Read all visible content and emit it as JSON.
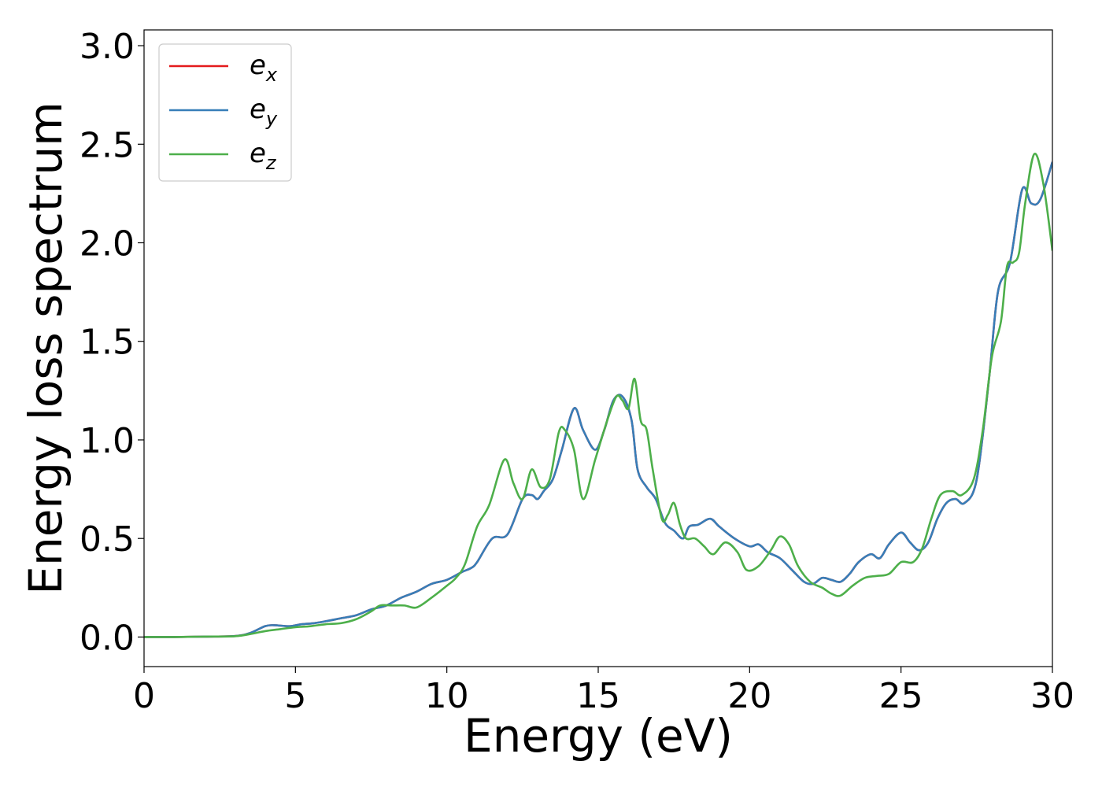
{
  "chart_data": {
    "type": "line",
    "xlabel": "Energy (eV)",
    "ylabel": "Energy loss spectrum",
    "xlim": [
      0,
      30
    ],
    "ylim": [
      -0.15,
      3.08
    ],
    "xticks": [
      "0",
      "5",
      "10",
      "15",
      "20",
      "25",
      "30"
    ],
    "yticks": [
      "0.0",
      "0.5",
      "1.0",
      "1.5",
      "2.0",
      "2.5",
      "3.0"
    ],
    "grid": false,
    "legend_position": "top-left",
    "series": [
      {
        "name": "e",
        "sub": "x",
        "color": "#e41a1c",
        "x": [
          0,
          1,
          2,
          3,
          3.5,
          4,
          4.3,
          4.8,
          5.2,
          5.6,
          6,
          6.5,
          7,
          7.5,
          8,
          8.5,
          9,
          9.5,
          10,
          10.5,
          10.8,
          11,
          11.5,
          12,
          12.5,
          12.8,
          13,
          13.2,
          13.5,
          13.8,
          14.2,
          14.5,
          14.9,
          15.2,
          15.5,
          15.8,
          16.1,
          16.3,
          16.6,
          16.9,
          17.2,
          17.5,
          17.8,
          18,
          18.3,
          18.7,
          19,
          19.5,
          20,
          20.3,
          20.6,
          21,
          21.4,
          21.8,
          22.1,
          22.4,
          22.7,
          23,
          23.3,
          23.6,
          24,
          24.3,
          24.6,
          25,
          25.3,
          25.6,
          25.9,
          26.2,
          26.5,
          26.8,
          27.1,
          27.5,
          27.9,
          28.2,
          28.6,
          29,
          29.3,
          29.6,
          30
        ],
        "y": [
          0,
          0,
          0.002,
          0.005,
          0.02,
          0.055,
          0.06,
          0.055,
          0.065,
          0.07,
          0.08,
          0.095,
          0.11,
          0.14,
          0.16,
          0.2,
          0.23,
          0.27,
          0.29,
          0.33,
          0.35,
          0.38,
          0.5,
          0.52,
          0.7,
          0.72,
          0.7,
          0.74,
          0.8,
          0.95,
          1.16,
          1.05,
          0.95,
          1.05,
          1.2,
          1.22,
          1.1,
          0.85,
          0.76,
          0.7,
          0.58,
          0.54,
          0.5,
          0.56,
          0.57,
          0.6,
          0.56,
          0.5,
          0.46,
          0.47,
          0.43,
          0.4,
          0.34,
          0.28,
          0.27,
          0.3,
          0.29,
          0.28,
          0.32,
          0.38,
          0.42,
          0.4,
          0.47,
          0.53,
          0.48,
          0.44,
          0.48,
          0.6,
          0.68,
          0.7,
          0.68,
          0.8,
          1.3,
          1.75,
          1.9,
          2.27,
          2.2,
          2.22,
          2.41
        ]
      },
      {
        "name": "e",
        "sub": "y",
        "color": "#377eb8",
        "x": [
          0,
          1,
          2,
          3,
          3.5,
          4,
          4.3,
          4.8,
          5.2,
          5.6,
          6,
          6.5,
          7,
          7.5,
          8,
          8.5,
          9,
          9.5,
          10,
          10.5,
          10.8,
          11,
          11.5,
          12,
          12.5,
          12.8,
          13,
          13.2,
          13.5,
          13.8,
          14.2,
          14.5,
          14.9,
          15.2,
          15.5,
          15.8,
          16.1,
          16.3,
          16.6,
          16.9,
          17.2,
          17.5,
          17.8,
          18,
          18.3,
          18.7,
          19,
          19.5,
          20,
          20.3,
          20.6,
          21,
          21.4,
          21.8,
          22.1,
          22.4,
          22.7,
          23,
          23.3,
          23.6,
          24,
          24.3,
          24.6,
          25,
          25.3,
          25.6,
          25.9,
          26.2,
          26.5,
          26.8,
          27.1,
          27.5,
          27.9,
          28.2,
          28.6,
          29,
          29.3,
          29.6,
          30
        ],
        "y": [
          0,
          0,
          0.002,
          0.005,
          0.02,
          0.055,
          0.06,
          0.055,
          0.065,
          0.07,
          0.08,
          0.095,
          0.11,
          0.14,
          0.16,
          0.2,
          0.23,
          0.27,
          0.29,
          0.33,
          0.35,
          0.38,
          0.5,
          0.52,
          0.7,
          0.72,
          0.7,
          0.74,
          0.8,
          0.95,
          1.16,
          1.05,
          0.95,
          1.05,
          1.2,
          1.22,
          1.1,
          0.85,
          0.76,
          0.7,
          0.58,
          0.54,
          0.5,
          0.56,
          0.57,
          0.6,
          0.56,
          0.5,
          0.46,
          0.47,
          0.43,
          0.4,
          0.34,
          0.28,
          0.27,
          0.3,
          0.29,
          0.28,
          0.32,
          0.38,
          0.42,
          0.4,
          0.47,
          0.53,
          0.48,
          0.44,
          0.48,
          0.6,
          0.68,
          0.7,
          0.68,
          0.8,
          1.3,
          1.75,
          1.9,
          2.27,
          2.2,
          2.22,
          2.41
        ]
      },
      {
        "name": "e",
        "sub": "z",
        "color": "#4daf4a",
        "x": [
          0,
          1,
          2,
          3,
          3.5,
          4,
          4.5,
          5,
          5.5,
          6,
          6.5,
          7,
          7.5,
          7.8,
          8.2,
          8.6,
          9,
          9.5,
          10,
          10.3,
          10.6,
          11,
          11.4,
          11.9,
          12.2,
          12.5,
          12.8,
          13.1,
          13.4,
          13.7,
          13.9,
          14.2,
          14.5,
          14.9,
          15.3,
          15.6,
          15.8,
          16,
          16.2,
          16.4,
          16.6,
          16.8,
          17.1,
          17.3,
          17.5,
          17.7,
          17.9,
          18.2,
          18.5,
          18.8,
          19.2,
          19.6,
          19.9,
          20.3,
          20.7,
          21,
          21.3,
          21.6,
          22,
          22.4,
          22.7,
          23,
          23.4,
          23.8,
          24.2,
          24.6,
          25,
          25.4,
          25.7,
          26,
          26.3,
          26.7,
          27,
          27.4,
          27.7,
          28,
          28.3,
          28.5,
          28.7,
          28.9,
          29.1,
          29.4,
          29.7,
          30
        ],
        "y": [
          0,
          0,
          0.002,
          0.004,
          0.015,
          0.03,
          0.04,
          0.05,
          0.055,
          0.065,
          0.07,
          0.09,
          0.13,
          0.16,
          0.16,
          0.16,
          0.15,
          0.2,
          0.26,
          0.3,
          0.37,
          0.56,
          0.67,
          0.9,
          0.78,
          0.7,
          0.85,
          0.76,
          0.8,
          1.04,
          1.05,
          0.95,
          0.7,
          0.9,
          1.1,
          1.22,
          1.2,
          1.16,
          1.31,
          1.1,
          1.05,
          0.85,
          0.6,
          0.62,
          0.68,
          0.57,
          0.5,
          0.5,
          0.46,
          0.42,
          0.48,
          0.43,
          0.34,
          0.36,
          0.44,
          0.51,
          0.47,
          0.36,
          0.28,
          0.25,
          0.22,
          0.21,
          0.26,
          0.3,
          0.31,
          0.32,
          0.38,
          0.38,
          0.45,
          0.6,
          0.72,
          0.74,
          0.72,
          0.8,
          1.05,
          1.42,
          1.6,
          1.88,
          1.9,
          1.95,
          2.2,
          2.45,
          2.3,
          1.96
        ]
      }
    ]
  }
}
